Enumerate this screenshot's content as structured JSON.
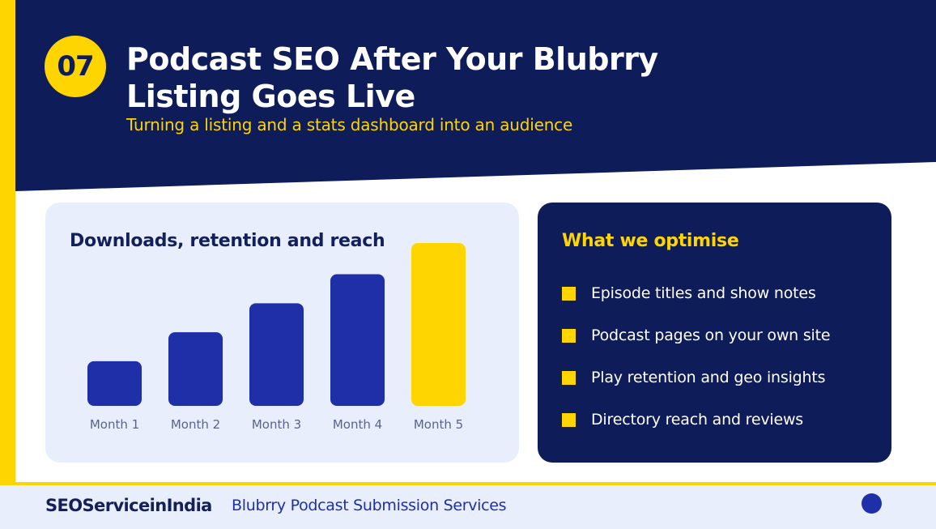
{
  "slide": {
    "number": "07",
    "title": "Podcast SEO After Your Blubrry Listing Goes Live",
    "subtitle": "Turning a listing and a stats dashboard into an audience"
  },
  "chart_data": {
    "type": "bar",
    "title": "Downloads, retention and reach",
    "categories": [
      "Month 1",
      "Month 2",
      "Month 3",
      "Month 4",
      "Month 5"
    ],
    "values": [
      1,
      1.65,
      2.3,
      2.95,
      3.65
    ],
    "highlight_index": 4,
    "colors": {
      "bar": "#1E2FA8",
      "highlight": "#FFD500",
      "tick_label": "#5A648C"
    }
  },
  "optimise": {
    "title": "What we optimise",
    "items": [
      "Episode titles and show notes",
      "Podcast pages on your own site",
      "Play retention and geo insights",
      "Directory reach and reviews"
    ]
  },
  "footer": {
    "brand": "SEOServiceinIndia",
    "service": "Blubrry Podcast Submission Services"
  },
  "colors": {
    "navy": "#0F1C5A",
    "yellow": "#FFD500",
    "royal_blue": "#1E2FA8",
    "light_bg": "#E8EEFB"
  }
}
